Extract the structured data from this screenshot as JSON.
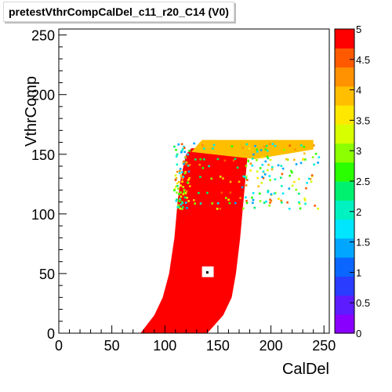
{
  "chart_data": {
    "type": "heatmap",
    "title": "pretestVthrCompCalDel_c11_r20_C14 (V0)",
    "xlabel": "CalDel",
    "ylabel": "VthrComp",
    "xlim": [
      0,
      255
    ],
    "ylim": [
      0,
      255
    ],
    "x_ticks": [
      0,
      50,
      100,
      150,
      200,
      250
    ],
    "y_ticks": [
      0,
      50,
      100,
      150,
      200,
      250
    ],
    "z_range": [
      0,
      5
    ],
    "z_ticks": [
      "0",
      "0.5",
      "1",
      "1.5",
      "2",
      "2.5",
      "3",
      "3.5",
      "4",
      "4.5",
      "5"
    ],
    "palette": [
      "#8a00ff",
      "#5d1cff",
      "#2a3cff",
      "#0a66ff",
      "#00a6ff",
      "#00e6ff",
      "#00f2c0",
      "#00f070",
      "#2aff00",
      "#8cff00",
      "#d8ff00",
      "#ffe800",
      "#ffbe00",
      "#ff9200",
      "#ff5a00",
      "#ff0000"
    ],
    "region": {
      "value": 5,
      "left_edge": [
        [
          0,
          77
        ],
        [
          15,
          90
        ],
        [
          30,
          98
        ],
        [
          50,
          104
        ],
        [
          80,
          109
        ],
        [
          110,
          112
        ],
        [
          130,
          115
        ],
        [
          150,
          120
        ],
        [
          155,
          125
        ]
      ],
      "right_edge": [
        [
          0,
          140
        ],
        [
          15,
          155
        ],
        [
          30,
          163
        ],
        [
          50,
          167
        ],
        [
          80,
          171
        ],
        [
          110,
          174
        ],
        [
          130,
          176
        ],
        [
          150,
          178
        ],
        [
          155,
          180
        ]
      ],
      "plateau": {
        "y_range": [
          152,
          162
        ],
        "x_range": [
          125,
          240
        ]
      },
      "hole": {
        "x": [
          135,
          146
        ],
        "y": [
          47,
          56
        ],
        "dot": [
          140,
          51
        ]
      }
    },
    "grid": false,
    "legend": "colorbar-right"
  }
}
